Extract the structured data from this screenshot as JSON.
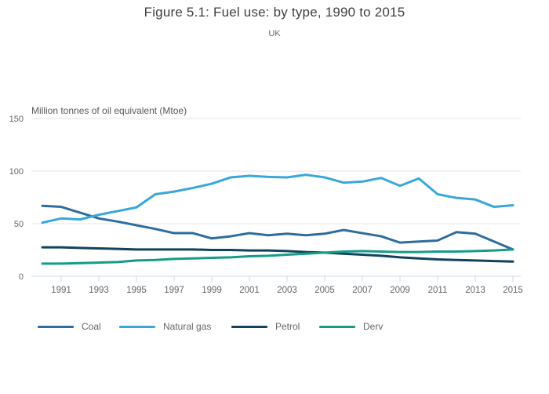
{
  "title": "Figure 5.1: Fuel use: by type, 1990 to 2015",
  "subtitle": "UK",
  "colors": {
    "coal": "#2e6d9e",
    "natural_gas": "#3aa7d9",
    "petrol": "#13425e",
    "derv": "#169c86",
    "gridline": "#e6e6e6",
    "axis_line": "#ccd9e8",
    "tick_label": "#666666",
    "title_text": "#404040",
    "unit_label_text": "#595959"
  },
  "chart_data": {
    "type": "line",
    "title": "Figure 5.1: Fuel use: by type, 1990 to 2015",
    "subtitle": "UK",
    "xlabel": "",
    "ylabel": "Million tonnes of oil equivalent (Mtoe)",
    "ylim": [
      0,
      150
    ],
    "yticks": [
      0,
      50,
      100,
      150
    ],
    "xticks": [
      1991,
      1993,
      1995,
      1997,
      1999,
      2001,
      2003,
      2005,
      2007,
      2009,
      2011,
      2013,
      2015
    ],
    "grid": "horizontal",
    "legend_position": "bottom-left",
    "x": [
      1990,
      1991,
      1992,
      1993,
      1994,
      1995,
      1996,
      1997,
      1998,
      1999,
      2000,
      2001,
      2002,
      2003,
      2004,
      2005,
      2006,
      2007,
      2008,
      2009,
      2010,
      2011,
      2012,
      2013,
      2014,
      2015
    ],
    "series": [
      {
        "name": "Coal",
        "color": "#2e6d9e",
        "values": [
          67,
          66,
          60.5,
          55,
          52,
          48.5,
          45,
          41,
          41,
          36,
          38,
          41,
          39,
          40.5,
          39,
          40.5,
          44,
          41,
          38,
          32,
          33,
          34,
          42,
          40.5,
          33,
          25.5
        ]
      },
      {
        "name": "Natural gas",
        "color": "#3aa7d9",
        "values": [
          51,
          55,
          54,
          58.5,
          62,
          65.5,
          78,
          80.5,
          84,
          88,
          94,
          95.5,
          94.5,
          94,
          96.5,
          94,
          89,
          90,
          93.5,
          86,
          93,
          78,
          74.5,
          73,
          66,
          67.5
        ]
      },
      {
        "name": "Petrol",
        "color": "#13425e",
        "values": [
          27.5,
          27.5,
          27,
          26.5,
          26,
          25.5,
          25.5,
          25.5,
          25.5,
          25,
          25,
          24.5,
          24.5,
          24,
          23,
          22.5,
          21.5,
          20.5,
          19.5,
          18,
          17,
          16,
          15.5,
          15,
          14.5,
          14
        ]
      },
      {
        "name": "Derv",
        "color": "#169c86",
        "values": [
          12,
          12,
          12.5,
          13,
          13.5,
          15,
          15.5,
          16.5,
          17,
          17.5,
          18,
          19,
          19.5,
          20.5,
          21.5,
          22.5,
          23.5,
          24,
          23.5,
          23,
          23,
          23.5,
          23.5,
          24,
          24.5,
          25.5
        ]
      }
    ]
  },
  "legend": {
    "items": [
      {
        "label": "Coal",
        "color": "#2e6d9e"
      },
      {
        "label": "Natural gas",
        "color": "#3aa7d9"
      },
      {
        "label": "Petrol",
        "color": "#13425e"
      },
      {
        "label": "Derv",
        "color": "#169c86"
      }
    ]
  }
}
